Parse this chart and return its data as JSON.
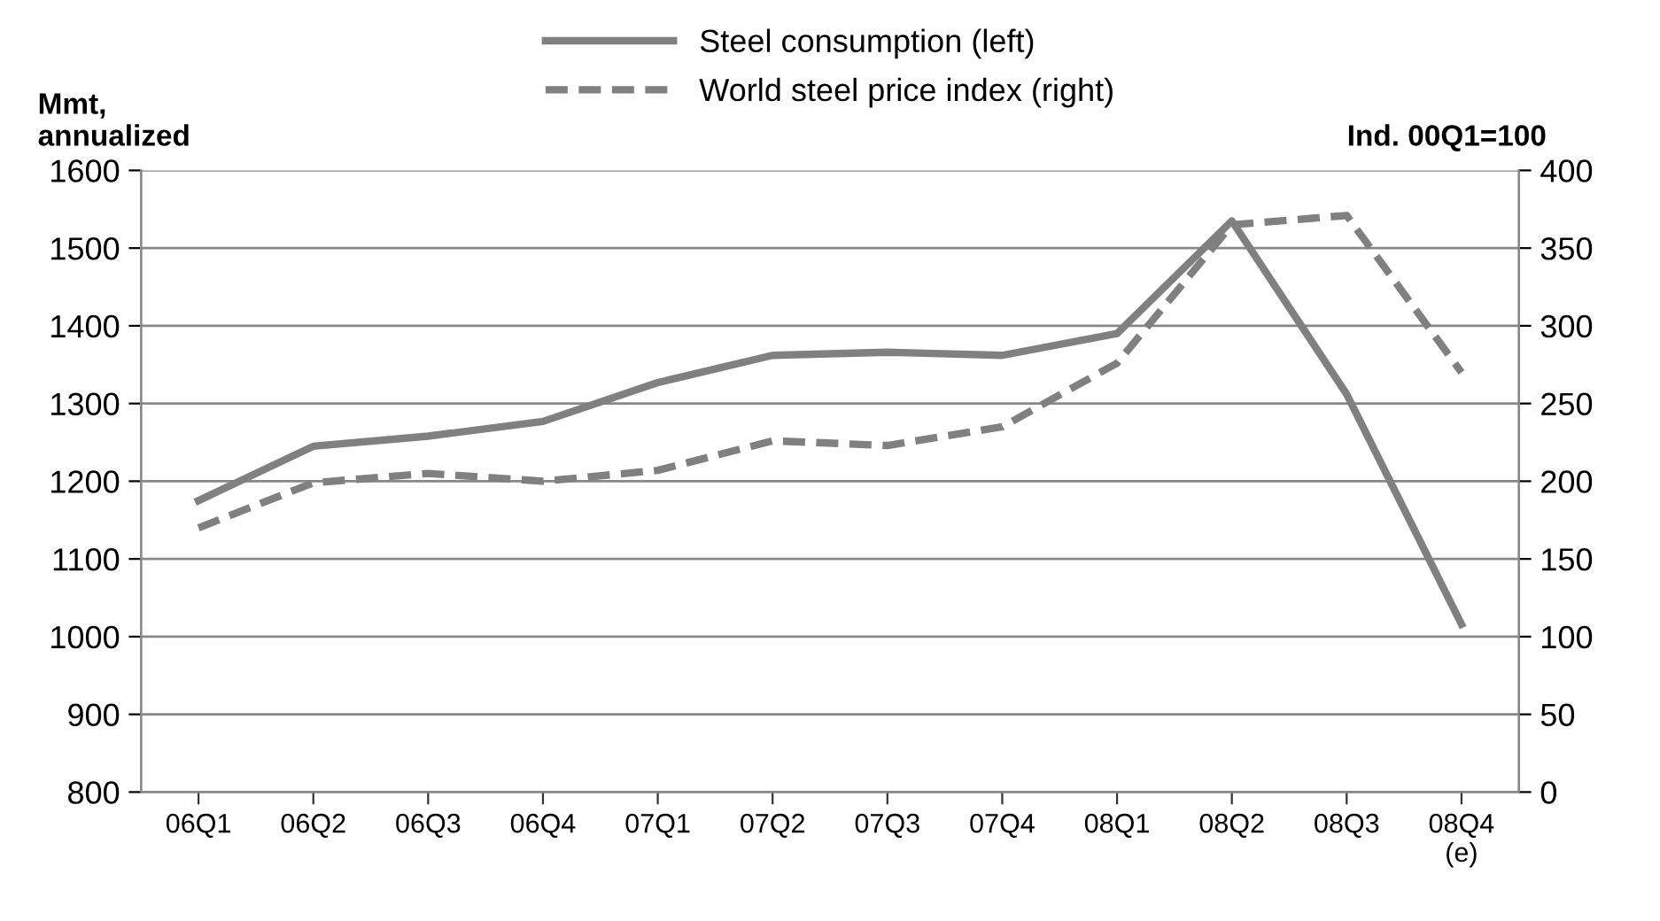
{
  "chart_data": {
    "type": "line",
    "ylabel": "Mmt,\nannualized",
    "y2label": "Ind. 00Q1=100",
    "categories": [
      "06Q1",
      "06Q2",
      "06Q3",
      "06Q4",
      "07Q1",
      "07Q2",
      "07Q3",
      "07Q4",
      "08Q1",
      "08Q2",
      "08Q3",
      "08Q4\n(e)"
    ],
    "series": [
      {
        "name": "Steel consumption (left)",
        "color": "#808080",
        "line_style": "solid",
        "values": [
          1175,
          1245,
          1258,
          1277,
          1327,
          1362,
          1366,
          1362,
          1390,
          1535,
          1312,
          1016
        ]
      },
      {
        "name": "World steel price index (right)",
        "color": "#808080",
        "line_style": "dashed",
        "axis": "y2",
        "values": [
          170,
          199,
          205,
          200,
          207,
          226,
          223,
          235,
          276,
          365,
          371,
          270
        ]
      }
    ],
    "ylim": [
      800,
      1600
    ],
    "yticks": [
      800,
      900,
      1000,
      1100,
      1200,
      1300,
      1400,
      1500,
      1600
    ],
    "y2lim": [
      0,
      400
    ],
    "y2ticks": [
      0,
      50,
      100,
      150,
      200,
      250,
      300,
      350,
      400
    ],
    "grid": "y",
    "legend": "top",
    "marker": "none"
  }
}
